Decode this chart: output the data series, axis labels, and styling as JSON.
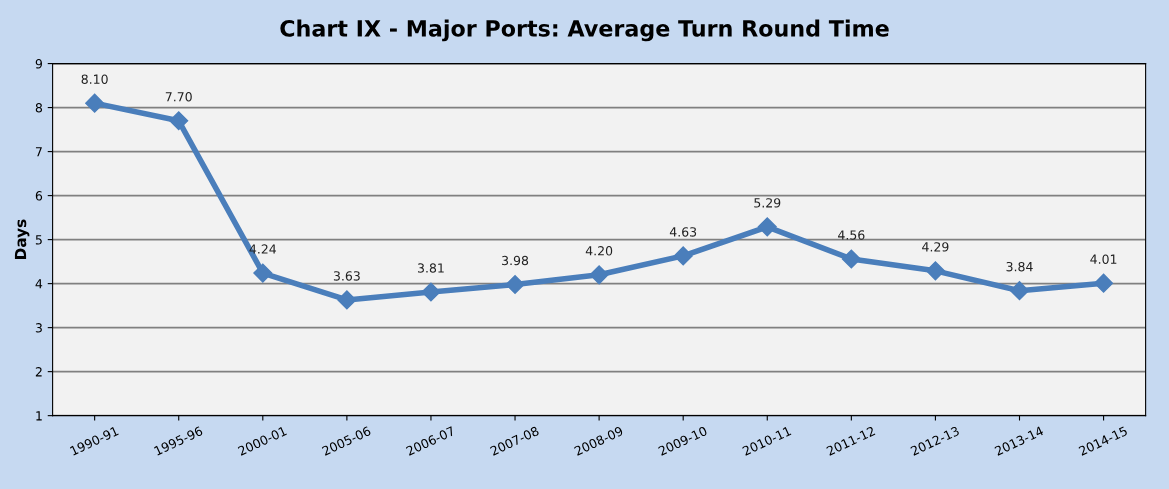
{
  "chart_data": {
    "type": "line",
    "title": "Chart IX - Major Ports: Average Turn Round Time",
    "ylabel": "Days",
    "categories": [
      "1990-91",
      "1995-96",
      "2000-01",
      "2005-06",
      "2006-07",
      "2007-08",
      "2008-09",
      "2009-10",
      "2010-11",
      "2011-12",
      "2012-13",
      "2013-14",
      "2014-15"
    ],
    "series": [
      {
        "color": "#4a7ebb",
        "values": [
          8.1,
          7.7,
          4.24,
          3.63,
          3.81,
          3.98,
          4.2,
          4.63,
          5.29,
          4.56,
          4.29,
          3.84,
          4.01
        ],
        "value_labels": [
          "8.10",
          "7.70",
          "4.24",
          "3.63",
          "3.81",
          "3.98",
          "4.20",
          "4.63",
          "5.29",
          "4.56",
          "4.29",
          "3.84",
          "4.01"
        ]
      }
    ],
    "ylim": [
      1,
      9
    ],
    "yticks": [
      1,
      2,
      3,
      4,
      5,
      6,
      7,
      8,
      9
    ],
    "grid": "y",
    "marker": "diamond",
    "line_style": "solid",
    "legend": false
  }
}
